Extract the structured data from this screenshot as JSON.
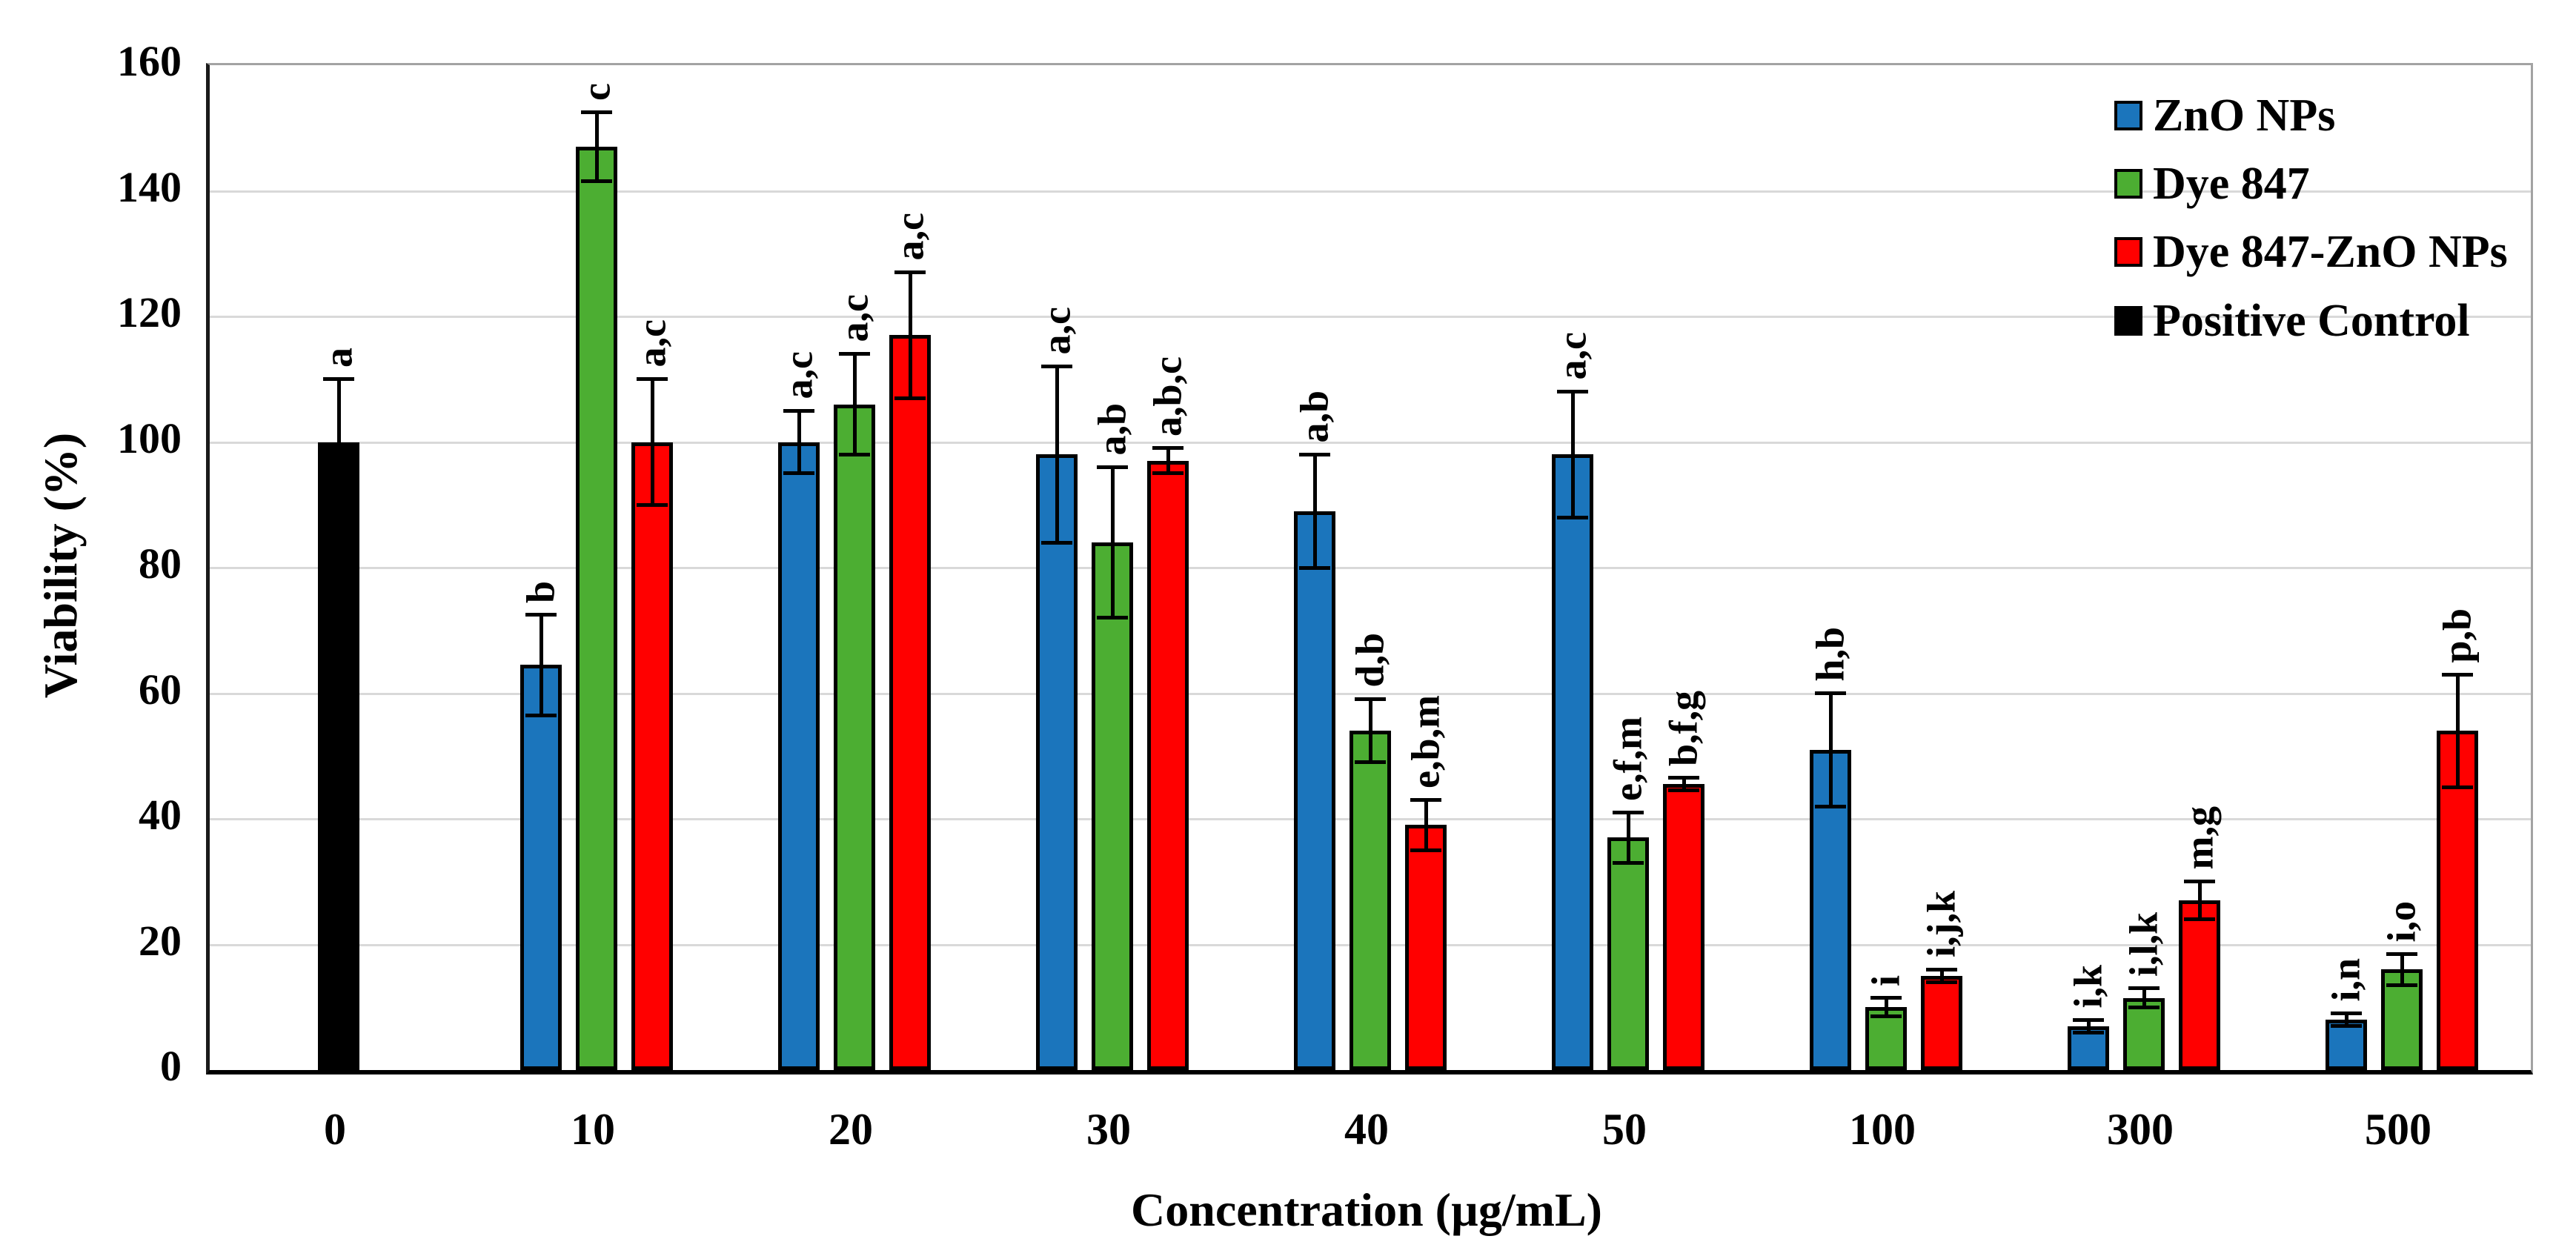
{
  "chart_data": {
    "type": "bar",
    "title": "",
    "xlabel": "Concentration (µg/mL)",
    "ylabel": "Viability (%)",
    "ylim": [
      0,
      160
    ],
    "ytick_step": 20,
    "yticks": [
      0,
      20,
      40,
      60,
      80,
      100,
      120,
      140,
      160
    ],
    "categories": [
      "0",
      "10",
      "20",
      "30",
      "40",
      "50",
      "100",
      "300",
      "500"
    ],
    "grid": true,
    "legend_position": "top-right",
    "bar_outline_color": "#000000",
    "gridline_color": "#d9d9d9",
    "series": [
      {
        "name": "ZnO NPs",
        "color": "#1b75bc",
        "values": [
          null,
          64.5,
          100,
          98,
          89,
          98,
          51,
          7,
          8
        ],
        "errors": [
          null,
          8,
          5,
          14,
          9,
          10,
          9,
          1,
          1
        ],
        "sig_labels": [
          null,
          "b",
          "a,c",
          "a,c",
          "a,b",
          "a,c",
          "h,b",
          "i,k",
          "i,n"
        ]
      },
      {
        "name": "Dye 847",
        "color": "#4cae32",
        "values": [
          null,
          147,
          106,
          84,
          54,
          37,
          10,
          11.5,
          16
        ],
        "errors": [
          null,
          5.5,
          8,
          12,
          5,
          4,
          1.5,
          1.5,
          2.5
        ],
        "sig_labels": [
          null,
          "c",
          "a,c",
          "a,b",
          "d,b",
          "e,f,m",
          "i",
          "i,l,k",
          "i,o"
        ]
      },
      {
        "name": "Dye 847-ZnO NPs",
        "color": "#ff0000",
        "values": [
          null,
          100,
          117,
          97,
          39,
          45.5,
          15,
          27,
          54
        ],
        "errors": [
          null,
          10,
          10,
          2,
          4,
          1,
          1,
          3,
          9
        ],
        "sig_labels": [
          null,
          "a,c",
          "a,c",
          "a,b,c",
          "e,b,m",
          "b,f,g",
          "i,j,k",
          "m,g",
          "p,b"
        ]
      },
      {
        "name": "Positive Control",
        "color": "#000000",
        "values": [
          100,
          null,
          null,
          null,
          null,
          null,
          null,
          null,
          null
        ],
        "errors": [
          10,
          null,
          null,
          null,
          null,
          null,
          null,
          null,
          null
        ],
        "sig_labels": [
          "a",
          null,
          null,
          null,
          null,
          null,
          null,
          null,
          null
        ]
      }
    ]
  }
}
